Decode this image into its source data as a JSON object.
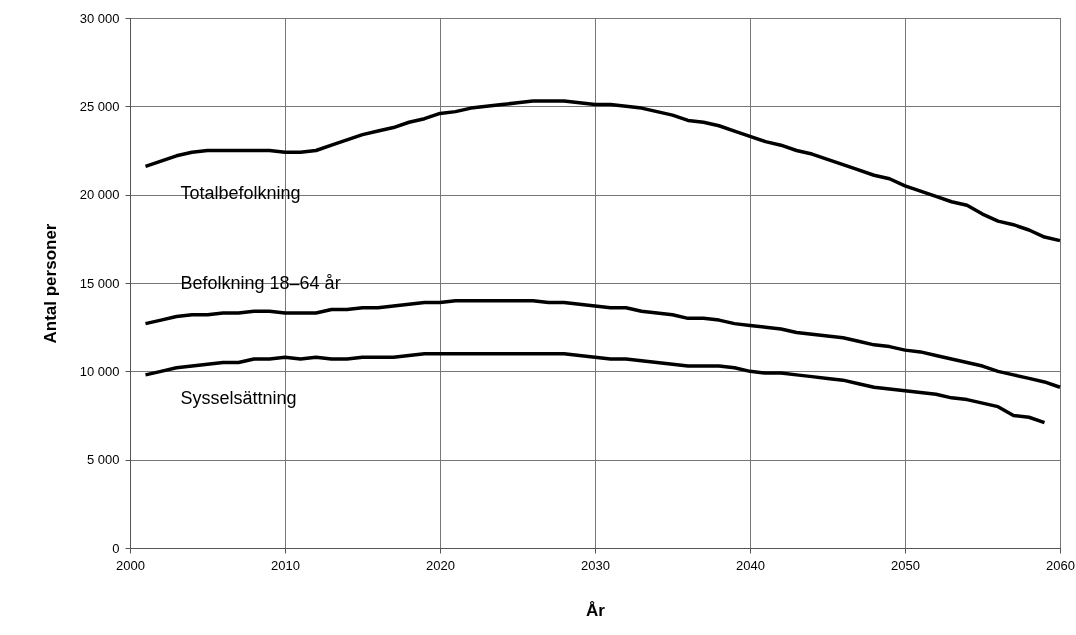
{
  "chart_data": {
    "type": "line",
    "xlabel": "År",
    "ylabel": "Antal personer",
    "xlim": [
      2000,
      2060
    ],
    "xticks": [
      2000,
      2010,
      2020,
      2030,
      2040,
      2050,
      2060
    ],
    "ylim": [
      0,
      30000
    ],
    "yticks": [
      {
        "value": 0,
        "label": "0"
      },
      {
        "value": 5000,
        "label": "5 000"
      },
      {
        "value": 10000,
        "label": "10 000"
      },
      {
        "value": 15000,
        "label": "15 000"
      },
      {
        "value": 20000,
        "label": "20 000"
      },
      {
        "value": 25000,
        "label": "25 000"
      },
      {
        "value": 30000,
        "label": "30 000"
      }
    ],
    "grid": true,
    "line_style": "solid",
    "series": [
      {
        "name": "Totalbefolkning",
        "color": "#000000",
        "x": [
          2001,
          2002,
          2003,
          2004,
          2005,
          2006,
          2007,
          2008,
          2009,
          2010,
          2011,
          2012,
          2013,
          2014,
          2015,
          2016,
          2017,
          2018,
          2019,
          2020,
          2021,
          2022,
          2023,
          2024,
          2025,
          2026,
          2027,
          2028,
          2029,
          2030,
          2031,
          2032,
          2033,
          2034,
          2035,
          2036,
          2037,
          2038,
          2039,
          2040,
          2041,
          2042,
          2043,
          2044,
          2045,
          2046,
          2047,
          2048,
          2049,
          2050,
          2051,
          2052,
          2053,
          2054,
          2055,
          2056,
          2057,
          2058,
          2059,
          2060
        ],
        "values": [
          21600,
          21900,
          22200,
          22400,
          22500,
          22500,
          22500,
          22500,
          22500,
          22400,
          22400,
          22500,
          22800,
          23100,
          23400,
          23600,
          23800,
          24100,
          24300,
          24600,
          24700,
          24900,
          25000,
          25100,
          25200,
          25300,
          25300,
          25300,
          25200,
          25100,
          25100,
          25000,
          24900,
          24700,
          24500,
          24200,
          24100,
          23900,
          23600,
          23300,
          23000,
          22800,
          22500,
          22300,
          22000,
          21700,
          21400,
          21100,
          20900,
          20500,
          20200,
          19900,
          19600,
          19400,
          18900,
          18500,
          18300,
          18000,
          17600,
          17400
        ]
      },
      {
        "name": "Befolkning 18–64 år",
        "color": "#000000",
        "x": [
          2001,
          2002,
          2003,
          2004,
          2005,
          2006,
          2007,
          2008,
          2009,
          2010,
          2011,
          2012,
          2013,
          2014,
          2015,
          2016,
          2017,
          2018,
          2019,
          2020,
          2021,
          2022,
          2023,
          2024,
          2025,
          2026,
          2027,
          2028,
          2029,
          2030,
          2031,
          2032,
          2033,
          2034,
          2035,
          2036,
          2037,
          2038,
          2039,
          2040,
          2041,
          2042,
          2043,
          2044,
          2045,
          2046,
          2047,
          2048,
          2049,
          2050,
          2051,
          2052,
          2053,
          2054,
          2055,
          2056,
          2057,
          2058,
          2059,
          2060
        ],
        "values": [
          12700,
          12900,
          13100,
          13200,
          13200,
          13300,
          13300,
          13400,
          13400,
          13300,
          13300,
          13300,
          13500,
          13500,
          13600,
          13600,
          13700,
          13800,
          13900,
          13900,
          14000,
          14000,
          14000,
          14000,
          14000,
          14000,
          13900,
          13900,
          13800,
          13700,
          13600,
          13600,
          13400,
          13300,
          13200,
          13000,
          13000,
          12900,
          12700,
          12600,
          12500,
          12400,
          12200,
          12100,
          12000,
          11900,
          11700,
          11500,
          11400,
          11200,
          11100,
          10900,
          10700,
          10500,
          10300,
          10000,
          9800,
          9600,
          9400,
          9100
        ]
      },
      {
        "name": "Sysselsättning",
        "color": "#000000",
        "x": [
          2001,
          2002,
          2003,
          2004,
          2005,
          2006,
          2007,
          2008,
          2009,
          2010,
          2011,
          2012,
          2013,
          2014,
          2015,
          2016,
          2017,
          2018,
          2019,
          2020,
          2021,
          2022,
          2023,
          2024,
          2025,
          2026,
          2027,
          2028,
          2029,
          2030,
          2031,
          2032,
          2033,
          2034,
          2035,
          2036,
          2037,
          2038,
          2039,
          2040,
          2041,
          2042,
          2043,
          2044,
          2045,
          2046,
          2047,
          2048,
          2049,
          2050,
          2051,
          2052,
          2053,
          2054,
          2055,
          2056,
          2057,
          2058,
          2059
        ],
        "values": [
          9800,
          10000,
          10200,
          10300,
          10400,
          10500,
          10500,
          10700,
          10700,
          10800,
          10700,
          10800,
          10700,
          10700,
          10800,
          10800,
          10800,
          10900,
          11000,
          11000,
          11000,
          11000,
          11000,
          11000,
          11000,
          11000,
          11000,
          11000,
          10900,
          10800,
          10700,
          10700,
          10600,
          10500,
          10400,
          10300,
          10300,
          10300,
          10200,
          10000,
          9900,
          9900,
          9800,
          9700,
          9600,
          9500,
          9300,
          9100,
          9000,
          8900,
          8800,
          8700,
          8500,
          8400,
          8200,
          8000,
          7500,
          7400,
          7100
        ]
      }
    ]
  }
}
